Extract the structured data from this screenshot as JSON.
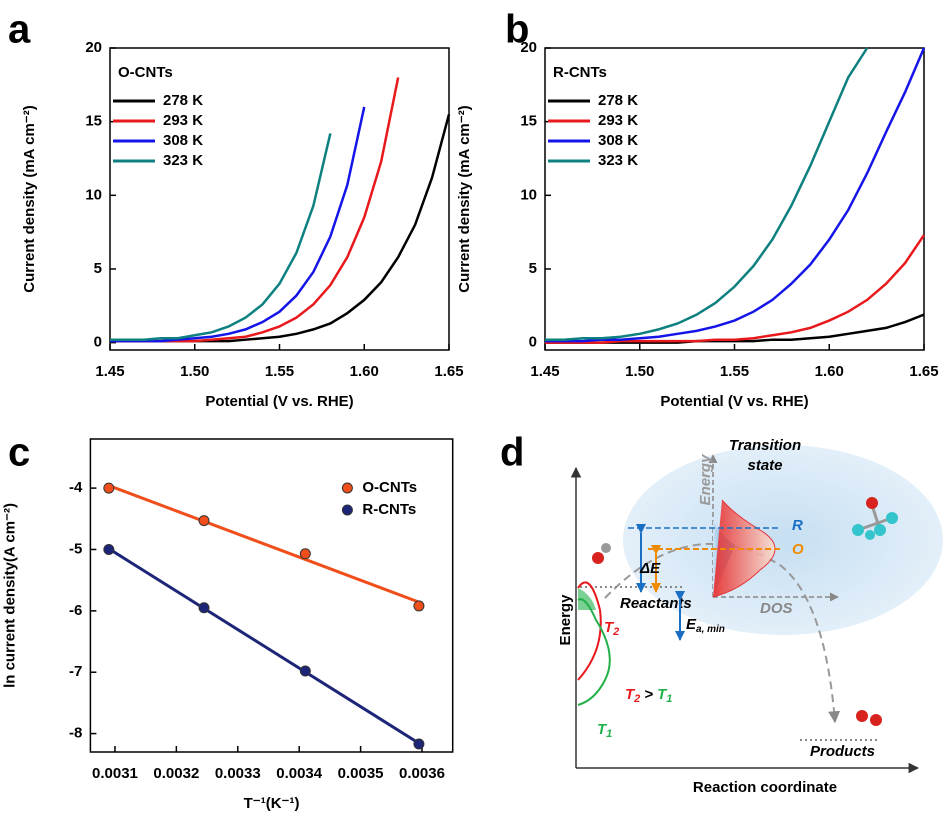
{
  "chart_data": [
    {
      "type": "line",
      "label": "a",
      "legend_title": "O-CNTs",
      "xlabel": "Potential (V vs. RHE)",
      "ylabel": "Current density (mA cm⁻²)",
      "x": [
        1.45,
        1.46,
        1.47,
        1.48,
        1.49,
        1.5,
        1.51,
        1.52,
        1.53,
        1.54,
        1.55,
        1.56,
        1.57,
        1.58,
        1.59,
        1.6,
        1.61,
        1.62,
        1.63,
        1.64,
        1.65
      ],
      "series": [
        {
          "name": "278 K",
          "color": "#000000",
          "values": [
            0.1,
            0.1,
            0.1,
            0.1,
            0.1,
            0.1,
            0.1,
            0.1,
            0.2,
            0.3,
            0.4,
            0.6,
            0.9,
            1.3,
            2.0,
            2.9,
            4.1,
            5.8,
            8.0,
            11.2,
            15.5
          ]
        },
        {
          "name": "293 K",
          "color": "#e8191c",
          "values": [
            0.1,
            0.1,
            0.1,
            0.1,
            0.1,
            0.1,
            0.2,
            0.3,
            0.4,
            0.7,
            1.1,
            1.7,
            2.6,
            3.9,
            5.8,
            8.5,
            12.3,
            18.0,
            null,
            null,
            null
          ]
        },
        {
          "name": "308 K",
          "color": "#1515e8",
          "values": [
            0.1,
            0.1,
            0.1,
            0.1,
            0.2,
            0.3,
            0.4,
            0.6,
            0.9,
            1.4,
            2.1,
            3.2,
            4.8,
            7.2,
            10.7,
            16.0,
            null,
            null,
            null,
            null,
            null
          ]
        },
        {
          "name": "323 K",
          "color": "#0e8080",
          "values": [
            0.2,
            0.2,
            0.2,
            0.3,
            0.3,
            0.5,
            0.7,
            1.1,
            1.7,
            2.6,
            4.0,
            6.1,
            9.3,
            14.2,
            null,
            null,
            null,
            null,
            null,
            null,
            null
          ]
        }
      ],
      "xlim": [
        1.45,
        1.65
      ],
      "xticks": [
        1.45,
        {
          "value": 1.5,
          "label": "1.50"
        },
        1.55,
        {
          "value": 1.6,
          "label": "1.60"
        },
        1.65
      ],
      "ylim": [
        -0.5,
        20
      ],
      "yticks": [
        0,
        5,
        10,
        15,
        20
      ]
    },
    {
      "type": "line",
      "label": "b",
      "legend_title": "R-CNTs",
      "xlabel": "Potential (V vs. RHE)",
      "ylabel": "Current density (mA cm⁻²)",
      "x": [
        1.45,
        1.46,
        1.47,
        1.48,
        1.49,
        1.5,
        1.51,
        1.52,
        1.53,
        1.54,
        1.55,
        1.56,
        1.57,
        1.58,
        1.59,
        1.6,
        1.61,
        1.62,
        1.63,
        1.64,
        1.65
      ],
      "series": [
        {
          "name": "278 K",
          "color": "#000000",
          "values": [
            0.0,
            0.0,
            0.0,
            0.0,
            0.0,
            0.0,
            0.0,
            0.0,
            0.1,
            0.1,
            0.1,
            0.1,
            0.2,
            0.2,
            0.3,
            0.4,
            0.6,
            0.8,
            1.0,
            1.4,
            1.9
          ]
        },
        {
          "name": "293 K",
          "color": "#e8191c",
          "values": [
            0.0,
            0.0,
            0.0,
            0.0,
            0.1,
            0.1,
            0.1,
            0.1,
            0.1,
            0.2,
            0.2,
            0.3,
            0.5,
            0.7,
            1.0,
            1.5,
            2.1,
            2.9,
            4.0,
            5.4,
            7.3
          ]
        },
        {
          "name": "308 K",
          "color": "#1515e8",
          "values": [
            0.1,
            0.1,
            0.1,
            0.2,
            0.2,
            0.3,
            0.4,
            0.6,
            0.8,
            1.1,
            1.5,
            2.1,
            2.9,
            4.0,
            5.3,
            7.0,
            9.0,
            11.5,
            14.3,
            17.0,
            20.0
          ]
        },
        {
          "name": "323 K",
          "color": "#0e8080",
          "values": [
            0.2,
            0.2,
            0.3,
            0.3,
            0.4,
            0.6,
            0.9,
            1.3,
            1.9,
            2.7,
            3.8,
            5.2,
            7.0,
            9.3,
            12.0,
            15.0,
            18.0,
            20.0,
            null,
            null,
            null
          ]
        }
      ],
      "xlim": [
        1.45,
        1.65
      ],
      "xticks": [
        1.45,
        {
          "value": 1.5,
          "label": "1.50"
        },
        1.55,
        {
          "value": 1.6,
          "label": "1.60"
        },
        1.65
      ],
      "ylim": [
        -0.5,
        20
      ],
      "yticks": [
        0,
        5,
        10,
        15,
        20
      ]
    },
    {
      "type": "scatter",
      "label": "c",
      "fit": true,
      "xlabel": "T⁻¹(K⁻¹)",
      "ylabel": "ln current density(A cm⁻²)",
      "x": [
        0.00309,
        0.003245,
        0.00341,
        0.003595
      ],
      "series": [
        {
          "name": "O-CNTs",
          "color": "#f04e1a",
          "values": [
            -4.0,
            -4.53,
            -5.07,
            -5.92
          ]
        },
        {
          "name": "R-CNTs",
          "color": "#1c2577",
          "values": [
            -5.0,
            -5.95,
            -6.98,
            -8.17
          ]
        }
      ],
      "xlim": [
        0.00306,
        0.00365
      ],
      "xticks": [
        0.0031,
        0.0032,
        0.0033,
        0.0034,
        0.0035,
        0.0036
      ],
      "ylim": [
        -8.3,
        -3.2
      ],
      "yticks": [
        -4,
        -5,
        -6,
        -7,
        -8
      ]
    }
  ],
  "diagram": {
    "label": "d",
    "y_axis": "Energy",
    "x_axis": "Reaction coordinate",
    "transition_state": [
      "Transition",
      "state"
    ],
    "inset_y_axis": "Energy",
    "inset_x_axis": "DOS",
    "level_r": "R",
    "level_o": "O",
    "delta_e": "ΔE",
    "barrier": {
      "main": "E",
      "sub": "a, min"
    },
    "t2": {
      "main": "T",
      "sub": "2"
    },
    "t1": {
      "main": "T",
      "sub": "1"
    },
    "relation": {
      "t2": {
        "main": "T",
        "sub": "2"
      },
      "op": ">",
      "t1": {
        "main": "T",
        "sub": "1"
      }
    },
    "reactants": "Reactants",
    "products": "Products"
  }
}
